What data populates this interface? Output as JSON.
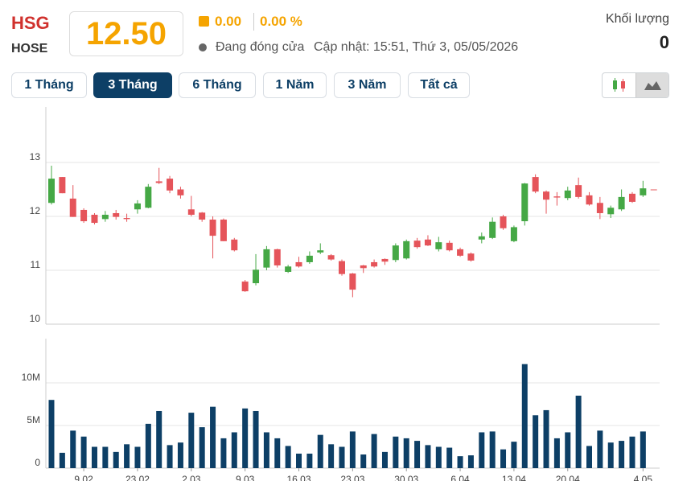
{
  "header": {
    "ticker": "HSG",
    "exchange": "HOSE",
    "price": "12.50",
    "change": "0.00",
    "change_pct": "0.00 %",
    "status": "Đang đóng cửa",
    "updated": "Cập nhật: 15:51, Thứ 3, 05/05/2026",
    "volume_label": "Khối lượng",
    "volume": "0"
  },
  "range_buttons": [
    "1 Tháng",
    "3 Tháng",
    "6 Tháng",
    "1 Năm",
    "3 Năm",
    "Tất cả"
  ],
  "chart_data": [
    {
      "type": "candlestick",
      "up_color": "#45a845",
      "down_color": "#e5545a",
      "grid": true,
      "open": [
        12.25,
        12.73,
        12.33,
        12.12,
        12.03,
        11.95,
        12.06,
        11.97,
        12.13,
        12.16,
        12.65,
        12.7,
        12.5,
        12.13,
        12.07,
        11.94,
        11.94,
        11.57,
        10.79,
        10.76,
        11.05,
        11.39,
        10.97,
        11.15,
        11.15,
        11.33,
        11.28,
        11.17,
        10.94,
        11.09,
        11.15,
        11.21,
        11.19,
        11.22,
        11.55,
        11.57,
        11.39,
        11.51,
        11.39,
        11.31,
        11.57,
        11.6,
        12.0,
        11.54,
        11.91,
        12.73,
        12.46,
        12.37,
        12.34,
        12.58,
        12.39,
        12.25,
        12.04,
        12.13,
        12.42,
        12.39,
        12.5
      ],
      "high": [
        12.94,
        12.73,
        12.58,
        12.15,
        12.06,
        12.1,
        12.12,
        12.05,
        12.3,
        12.6,
        12.9,
        12.75,
        12.55,
        12.38,
        12.08,
        12.0,
        11.96,
        11.6,
        10.82,
        11.3,
        11.45,
        11.4,
        11.1,
        11.25,
        11.35,
        11.5,
        11.3,
        11.2,
        10.95,
        11.1,
        11.2,
        11.22,
        11.5,
        11.57,
        11.6,
        11.65,
        11.62,
        11.55,
        11.42,
        11.33,
        11.7,
        11.98,
        12.03,
        11.83,
        12.62,
        12.78,
        12.48,
        12.45,
        12.55,
        12.72,
        12.45,
        12.36,
        12.2,
        12.5,
        12.45,
        12.66,
        12.5
      ],
      "low": [
        12.22,
        12.43,
        11.99,
        11.88,
        11.85,
        11.9,
        11.94,
        11.9,
        12.05,
        12.15,
        12.6,
        12.43,
        12.33,
        12.0,
        11.9,
        11.22,
        11.54,
        11.35,
        10.6,
        10.72,
        11.0,
        11.05,
        10.95,
        11.05,
        11.12,
        11.3,
        11.18,
        10.9,
        10.5,
        10.95,
        11.05,
        11.1,
        11.15,
        11.2,
        11.4,
        11.45,
        11.35,
        11.35,
        11.25,
        11.16,
        11.5,
        11.58,
        11.75,
        11.52,
        11.83,
        12.43,
        12.05,
        12.2,
        12.3,
        12.33,
        12.2,
        11.95,
        11.97,
        12.1,
        12.25,
        12.36,
        12.5
      ],
      "close": [
        12.7,
        12.43,
        11.99,
        11.91,
        11.88,
        12.03,
        11.99,
        11.95,
        12.24,
        12.55,
        12.62,
        12.48,
        12.39,
        12.03,
        11.94,
        11.64,
        11.54,
        11.37,
        10.61,
        11.01,
        11.39,
        11.09,
        11.07,
        11.07,
        11.27,
        11.37,
        11.2,
        10.93,
        10.64,
        11.04,
        11.07,
        11.16,
        11.46,
        11.54,
        11.43,
        11.46,
        11.52,
        11.37,
        11.27,
        11.18,
        11.63,
        11.9,
        11.78,
        11.8,
        12.61,
        12.46,
        12.31,
        12.35,
        12.48,
        12.36,
        12.22,
        12.06,
        12.16,
        12.36,
        12.27,
        12.52,
        12.5
      ],
      "ylim": [
        10,
        14
      ],
      "yticks": [
        10,
        11,
        12,
        13
      ]
    },
    {
      "type": "bar",
      "color": "#0d3f66",
      "grid": true,
      "values": [
        8000000,
        1800000,
        4400000,
        3700000,
        2500000,
        2500000,
        1900000,
        2800000,
        2500000,
        5200000,
        6700000,
        2700000,
        3000000,
        6500000,
        4800000,
        7200000,
        3500000,
        4200000,
        7000000,
        6700000,
        4200000,
        3500000,
        2600000,
        1700000,
        1700000,
        3900000,
        2800000,
        2500000,
        4300000,
        1600000,
        4000000,
        1900000,
        3700000,
        3500000,
        3200000,
        2700000,
        2500000,
        2400000,
        1400000,
        1500000,
        4200000,
        4300000,
        2200000,
        3100000,
        12200000,
        6200000,
        6800000,
        3500000,
        4200000,
        8500000,
        2600000,
        4400000,
        3000000,
        3200000,
        3700000,
        4300000,
        0
      ],
      "ylim": [
        0,
        15000000
      ],
      "yticks": [
        0,
        {
          "value": 5000000,
          "label": "5M"
        },
        {
          "value": 10000000,
          "label": "10M"
        }
      ],
      "xticks": [
        {
          "value": 3,
          "label": "9.02"
        },
        {
          "value": 8,
          "label": "23.02"
        },
        {
          "value": 13,
          "label": "2.03"
        },
        {
          "value": 18,
          "label": "9.03"
        },
        {
          "value": 23,
          "label": "16.03"
        },
        {
          "value": 28,
          "label": "23.03"
        },
        {
          "value": 33,
          "label": "30.03"
        },
        {
          "value": 38,
          "label": "6.04"
        },
        {
          "value": 43,
          "label": "13.04"
        },
        {
          "value": 48,
          "label": "20.04"
        },
        {
          "value": 55,
          "label": "4.05"
        }
      ]
    }
  ]
}
